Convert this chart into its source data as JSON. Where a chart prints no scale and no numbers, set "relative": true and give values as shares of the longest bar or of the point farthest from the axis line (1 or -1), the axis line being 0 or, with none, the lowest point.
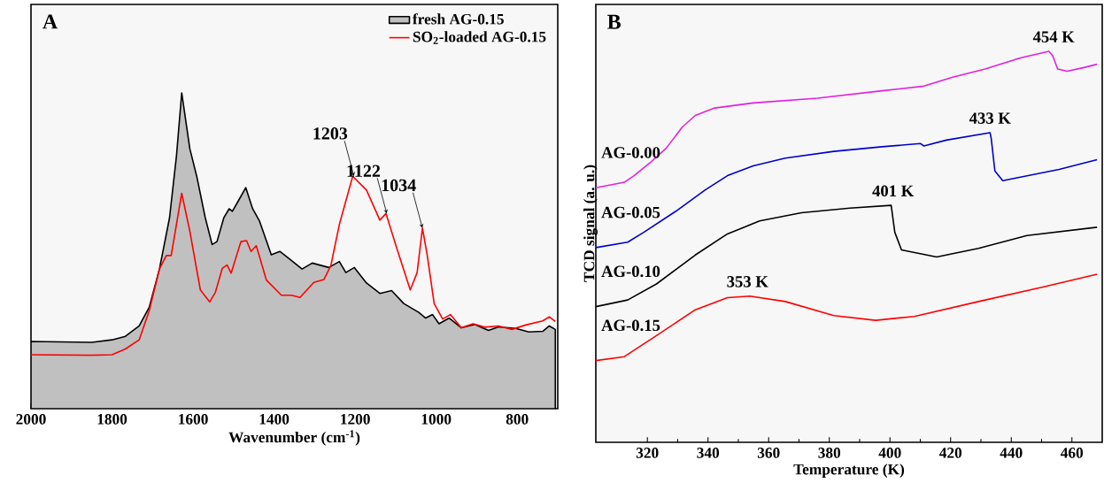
{
  "chart_data": [
    {
      "type": "line",
      "relative": true,
      "xlabel": "Wavenumber (cm$^{-1}$)",
      "xlim": [
        2000,
        700
      ],
      "xticks": [
        2000,
        1800,
        1600,
        1400,
        1200,
        1000,
        800
      ],
      "legend": "top right",
      "annotations": [
        "A",
        {
          "text": "1203",
          "x": 1203,
          "y": 0.736
        },
        {
          "text": "1122",
          "x": 1122,
          "y": 0.618
        },
        {
          "text": "1034",
          "x": 1034,
          "y": 0.572
        }
      ],
      "series": [
        {
          "name": "fresh AG-0.15",
          "type": "area",
          "color": "#c0c0c0",
          "x": [
            2000,
            1850,
            1800,
            1767,
            1733,
            1708,
            1683,
            1658,
            1641,
            1628,
            1608,
            1591,
            1570,
            1553,
            1541,
            1524,
            1511,
            1503,
            1490,
            1470,
            1453,
            1436,
            1407,
            1386,
            1365,
            1331,
            1306,
            1265,
            1239,
            1223,
            1202,
            1172,
            1139,
            1110,
            1080,
            1043,
            1026,
            1009,
            993,
            968,
            938,
            905,
            871,
            846,
            804,
            771,
            737,
            721,
            706
          ],
          "values": [
            0.213,
            0.21,
            0.218,
            0.229,
            0.262,
            0.322,
            0.442,
            0.605,
            0.8,
            1.0,
            0.823,
            0.736,
            0.605,
            0.52,
            0.529,
            0.605,
            0.633,
            0.625,
            0.654,
            0.7,
            0.633,
            0.594,
            0.487,
            0.498,
            0.477,
            0.442,
            0.461,
            0.447,
            0.466,
            0.431,
            0.447,
            0.398,
            0.365,
            0.374,
            0.333,
            0.305,
            0.287,
            0.298,
            0.269,
            0.287,
            0.256,
            0.267,
            0.248,
            0.259,
            0.254,
            0.243,
            0.245,
            0.262,
            0.251
          ]
        },
        {
          "name": "SO$_{2}$-loaded AG-0.15",
          "type": "line",
          "color": "#ff0000",
          "x": [
            2000,
            1850,
            1800,
            1767,
            1733,
            1708,
            1683,
            1666,
            1654,
            1628,
            1608,
            1582,
            1559,
            1545,
            1528,
            1516,
            1506,
            1482,
            1468,
            1457,
            1444,
            1419,
            1382,
            1357,
            1336,
            1302,
            1277,
            1260,
            1239,
            1206,
            1172,
            1139,
            1124,
            1097,
            1064,
            1047,
            1034,
            1022,
            1005,
            984,
            965,
            938,
            909,
            880,
            846,
            813,
            779,
            737,
            721,
            706
          ],
          "values": [
            0.171,
            0.169,
            0.171,
            0.189,
            0.218,
            0.311,
            0.442,
            0.485,
            0.485,
            0.682,
            0.562,
            0.376,
            0.338,
            0.368,
            0.444,
            0.455,
            0.429,
            0.529,
            0.532,
            0.498,
            0.516,
            0.407,
            0.359,
            0.359,
            0.352,
            0.4,
            0.409,
            0.453,
            0.583,
            0.736,
            0.692,
            0.597,
            0.618,
            0.507,
            0.376,
            0.431,
            0.572,
            0.485,
            0.333,
            0.284,
            0.298,
            0.256,
            0.269,
            0.258,
            0.262,
            0.251,
            0.265,
            0.278,
            0.291,
            0.276
          ]
        }
      ]
    },
    {
      "type": "line",
      "relative": true,
      "xlabel": "Temperature (K)",
      "ylabel": "TCD signal (a. u.)",
      "xlim": [
        303,
        470
      ],
      "xticks": [
        320,
        340,
        360,
        380,
        400,
        420,
        440,
        460
      ],
      "annotations": [
        "B",
        {
          "text": "454 K",
          "x": 454,
          "y": 1.0
        },
        {
          "text": "433 K",
          "x": 433,
          "y": 0.792
        },
        {
          "text": "401 K",
          "x": 401,
          "y": 0.606
        },
        {
          "text": "353 K",
          "x": 353,
          "y": 0.374
        }
      ],
      "series": [
        {
          "name": "AG-0.00",
          "color": "#e020e0",
          "x": [
            303,
            312.4,
            315.6,
            320.9,
            326.2,
            331.5,
            335.8,
            342.2,
            354.9,
            376.1,
            397.4,
            411.2,
            420.7,
            431.4,
            443.0,
            452.4,
            453.7,
            455.3,
            458.4,
            464.3,
            468.3
          ],
          "values": [
            0.651,
            0.665,
            0.682,
            0.715,
            0.752,
            0.806,
            0.836,
            0.855,
            0.868,
            0.88,
            0.899,
            0.911,
            0.934,
            0.955,
            0.983,
            1.0,
            0.988,
            0.955,
            0.949,
            0.959,
            0.967
          ]
        },
        {
          "name": "AG-0.05",
          "color": "#0000cc",
          "x": [
            303,
            313.5,
            318.8,
            329.4,
            339.0,
            346.4,
            354.9,
            365.5,
            381.5,
            397.4,
            410.1,
            411.2,
            418.6,
            433,
            433.4,
            434.6,
            437.2,
            443.0,
            455.8,
            468.3
          ],
          "values": [
            0.498,
            0.512,
            0.537,
            0.591,
            0.645,
            0.682,
            0.707,
            0.727,
            0.744,
            0.756,
            0.764,
            0.758,
            0.773,
            0.792,
            0.777,
            0.694,
            0.669,
            0.678,
            0.698,
            0.723
          ]
        },
        {
          "name": "AG-0.10",
          "color": "#000000",
          "x": [
            303,
            313.5,
            323.0,
            335.8,
            346.4,
            357.0,
            370.8,
            386.8,
            400.4,
            401.6,
            403.8,
            415.4,
            429.2,
            445.2,
            468.3
          ],
          "values": [
            0.347,
            0.364,
            0.405,
            0.479,
            0.533,
            0.566,
            0.587,
            0.599,
            0.606,
            0.537,
            0.492,
            0.474,
            0.496,
            0.529,
            0.55
          ]
        },
        {
          "name": "AG-0.15",
          "color": "#ff0000",
          "x": [
            303,
            312.4,
            323.0,
            335.8,
            346.4,
            353.8,
            365.5,
            381.5,
            395.3,
            408.0,
            429.2,
            450.4,
            468.3
          ],
          "values": [
            0.209,
            0.219,
            0.273,
            0.339,
            0.37,
            0.374,
            0.36,
            0.324,
            0.312,
            0.322,
            0.36,
            0.397,
            0.43
          ]
        }
      ]
    }
  ]
}
